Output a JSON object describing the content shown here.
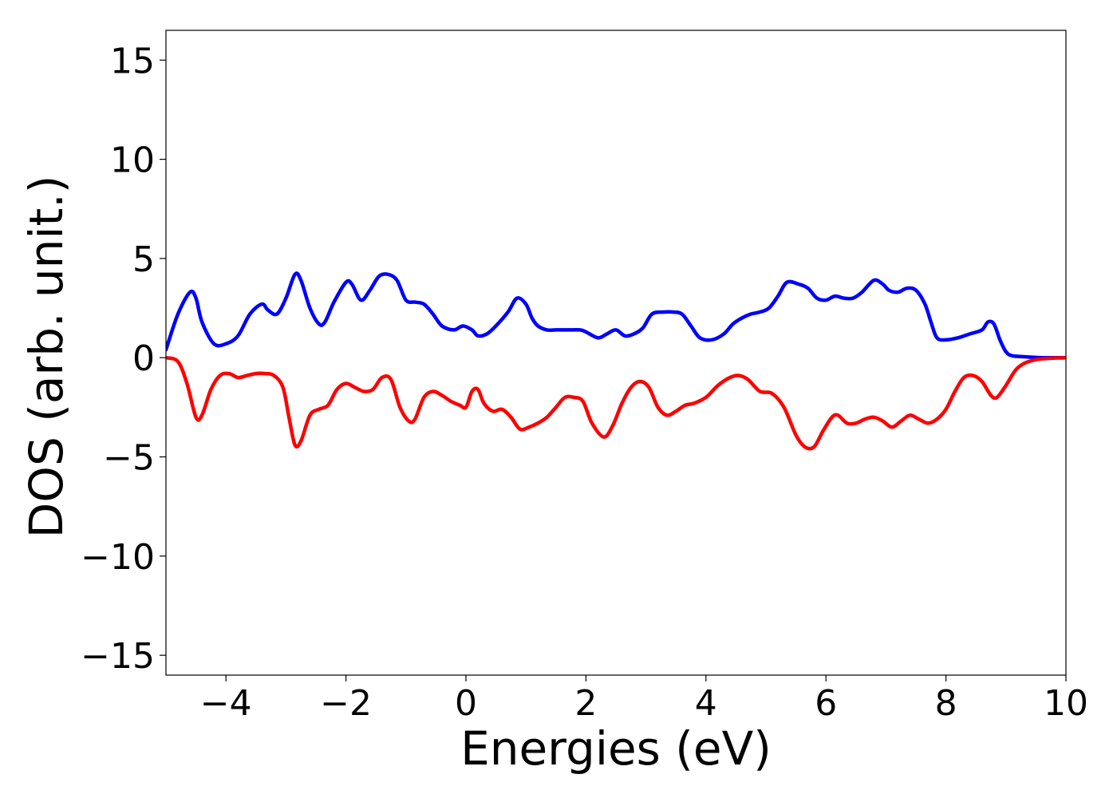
{
  "chart_data": {
    "type": "line",
    "title": "",
    "xlabel": "Energies (eV)",
    "ylabel": "DOS (arb. unit.)",
    "xlim": [
      -5,
      10
    ],
    "ylim": [
      -16,
      16.5
    ],
    "xticks": [
      -4,
      -2,
      0,
      2,
      4,
      6,
      8,
      10
    ],
    "yticks": [
      15,
      10,
      5,
      0,
      -5,
      -10,
      -15
    ],
    "xtick_labels": [
      "−4",
      "−2",
      "0",
      "2",
      "4",
      "6",
      "8",
      "10"
    ],
    "ytick_labels": [
      "15",
      "10",
      "5",
      "0",
      "−5",
      "−10",
      "−15"
    ],
    "grid": false,
    "legend": false,
    "series": [
      {
        "color": "#0000ff",
        "x": [
          -5.0,
          -4.8,
          -4.6,
          -4.5,
          -4.4,
          -4.2,
          -4.0,
          -3.8,
          -3.6,
          -3.4,
          -3.3,
          -3.15,
          -3.0,
          -2.85,
          -2.75,
          -2.6,
          -2.45,
          -2.35,
          -2.2,
          -2.0,
          -1.9,
          -1.75,
          -1.6,
          -1.45,
          -1.3,
          -1.15,
          -1.0,
          -0.85,
          -0.7,
          -0.55,
          -0.4,
          -0.2,
          -0.05,
          0.1,
          0.2,
          0.35,
          0.5,
          0.7,
          0.85,
          1.0,
          1.1,
          1.2,
          1.35,
          1.5,
          1.7,
          1.9,
          2.0,
          2.2,
          2.35,
          2.5,
          2.65,
          2.8,
          2.95,
          3.1,
          3.3,
          3.45,
          3.6,
          3.75,
          3.9,
          4.1,
          4.3,
          4.45,
          4.6,
          4.75,
          4.9,
          5.05,
          5.2,
          5.35,
          5.55,
          5.7,
          5.85,
          6.0,
          6.15,
          6.3,
          6.45,
          6.6,
          6.8,
          6.95,
          7.05,
          7.2,
          7.35,
          7.5,
          7.65,
          7.75,
          7.85,
          8.0,
          8.2,
          8.4,
          8.6,
          8.7,
          8.8,
          8.9,
          9.0,
          9.1,
          9.3,
          9.6,
          10.0
        ],
        "y": [
          0.4,
          2.2,
          3.3,
          3.0,
          1.8,
          0.7,
          0.7,
          1.1,
          2.2,
          2.7,
          2.4,
          2.2,
          3.0,
          4.2,
          3.9,
          2.5,
          1.7,
          1.8,
          2.8,
          3.8,
          3.7,
          2.9,
          3.4,
          4.1,
          4.2,
          3.9,
          2.9,
          2.8,
          2.7,
          2.2,
          1.6,
          1.4,
          1.6,
          1.4,
          1.1,
          1.2,
          1.6,
          2.3,
          3.0,
          2.7,
          2.0,
          1.6,
          1.4,
          1.4,
          1.4,
          1.4,
          1.3,
          1.0,
          1.2,
          1.4,
          1.1,
          1.2,
          1.5,
          2.2,
          2.3,
          2.3,
          2.2,
          1.6,
          1.0,
          0.9,
          1.2,
          1.7,
          2.0,
          2.2,
          2.3,
          2.5,
          3.1,
          3.8,
          3.7,
          3.5,
          3.0,
          2.9,
          3.1,
          3.0,
          3.0,
          3.3,
          3.9,
          3.7,
          3.4,
          3.3,
          3.5,
          3.4,
          2.7,
          1.8,
          1.0,
          0.9,
          1.0,
          1.2,
          1.4,
          1.8,
          1.7,
          0.9,
          0.3,
          0.1,
          0.05,
          0.0,
          0.0
        ]
      },
      {
        "color": "#ff0000",
        "x": [
          -5.0,
          -4.8,
          -4.65,
          -4.5,
          -4.4,
          -4.25,
          -4.1,
          -3.95,
          -3.8,
          -3.65,
          -3.5,
          -3.35,
          -3.2,
          -3.05,
          -2.95,
          -2.85,
          -2.75,
          -2.6,
          -2.45,
          -2.3,
          -2.15,
          -2.0,
          -1.85,
          -1.7,
          -1.55,
          -1.4,
          -1.25,
          -1.1,
          -0.95,
          -0.85,
          -0.7,
          -0.55,
          -0.4,
          -0.25,
          -0.1,
          0.0,
          0.1,
          0.2,
          0.3,
          0.45,
          0.6,
          0.75,
          0.9,
          1.05,
          1.2,
          1.35,
          1.5,
          1.65,
          1.8,
          1.95,
          2.1,
          2.3,
          2.45,
          2.6,
          2.75,
          2.9,
          3.05,
          3.2,
          3.35,
          3.5,
          3.65,
          3.8,
          4.0,
          4.2,
          4.4,
          4.55,
          4.7,
          4.9,
          5.1,
          5.3,
          5.5,
          5.65,
          5.8,
          5.95,
          6.1,
          6.2,
          6.35,
          6.5,
          6.65,
          6.8,
          6.95,
          7.1,
          7.25,
          7.4,
          7.55,
          7.7,
          7.85,
          8.0,
          8.15,
          8.3,
          8.45,
          8.6,
          8.75,
          8.85,
          9.0,
          9.2,
          9.5,
          10.0
        ],
        "y": [
          0.0,
          -0.2,
          -1.3,
          -3.0,
          -2.9,
          -1.6,
          -0.9,
          -0.8,
          -1.0,
          -0.9,
          -0.8,
          -0.8,
          -0.9,
          -1.5,
          -3.0,
          -4.4,
          -4.2,
          -2.9,
          -2.6,
          -2.4,
          -1.6,
          -1.3,
          -1.5,
          -1.7,
          -1.6,
          -1.0,
          -1.1,
          -2.5,
          -3.2,
          -3.1,
          -2.0,
          -1.7,
          -1.9,
          -2.2,
          -2.4,
          -2.5,
          -1.7,
          -1.6,
          -2.3,
          -2.7,
          -2.6,
          -3.0,
          -3.6,
          -3.5,
          -3.3,
          -3.0,
          -2.5,
          -2.0,
          -2.0,
          -2.2,
          -3.3,
          -4.0,
          -3.4,
          -2.3,
          -1.5,
          -1.2,
          -1.5,
          -2.5,
          -2.9,
          -2.7,
          -2.4,
          -2.3,
          -2.0,
          -1.4,
          -1.0,
          -0.9,
          -1.1,
          -1.7,
          -1.8,
          -2.5,
          -3.9,
          -4.5,
          -4.5,
          -3.7,
          -3.0,
          -2.9,
          -3.3,
          -3.3,
          -3.1,
          -3.0,
          -3.2,
          -3.5,
          -3.2,
          -2.9,
          -3.1,
          -3.3,
          -3.1,
          -2.6,
          -1.7,
          -1.0,
          -0.9,
          -1.2,
          -1.9,
          -2.0,
          -1.4,
          -0.5,
          -0.1,
          0.0
        ]
      }
    ]
  }
}
